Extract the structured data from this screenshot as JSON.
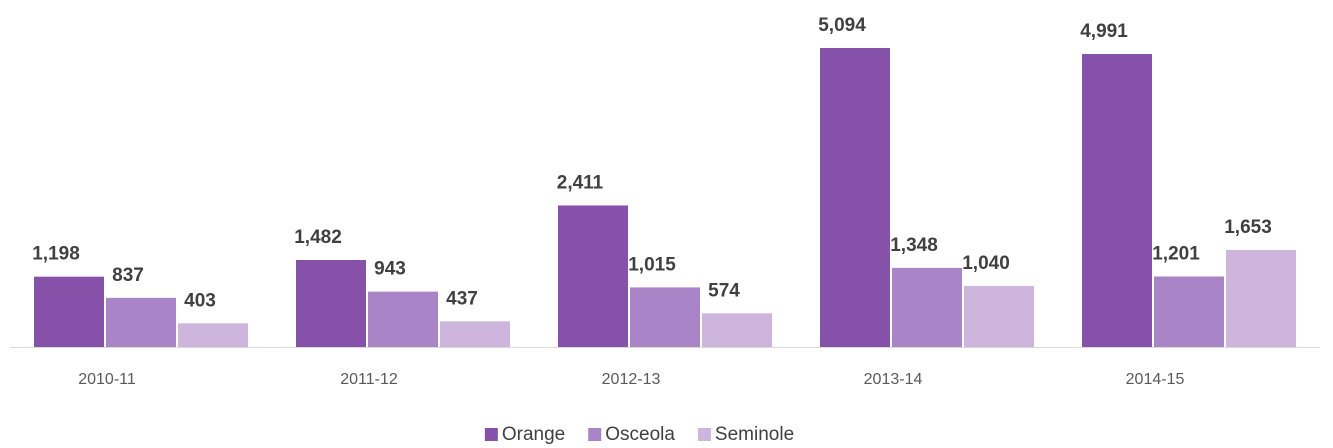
{
  "chart_data": {
    "type": "bar",
    "categories": [
      "2010-11",
      "2011-12",
      "2012-13",
      "2013-14",
      "2014-15"
    ],
    "series": [
      {
        "name": "Orange",
        "color": "#8651a9",
        "values": [
          1198,
          1482,
          2411,
          5094,
          4991
        ],
        "value_labels": [
          "1,198",
          "1,482",
          "2,411",
          "5,094",
          "4,991"
        ]
      },
      {
        "name": "Osceola",
        "color": "#a985c8",
        "values": [
          837,
          943,
          1015,
          1348,
          1201
        ],
        "value_labels": [
          "837",
          "943",
          "1,015",
          "1,348",
          "1,201"
        ]
      },
      {
        "name": "Seminole",
        "color": "#cdb5dd",
        "values": [
          403,
          437,
          574,
          1040,
          1653
        ],
        "value_labels": [
          "403",
          "437",
          "574",
          "1,040",
          "1,653"
        ]
      }
    ]
  }
}
